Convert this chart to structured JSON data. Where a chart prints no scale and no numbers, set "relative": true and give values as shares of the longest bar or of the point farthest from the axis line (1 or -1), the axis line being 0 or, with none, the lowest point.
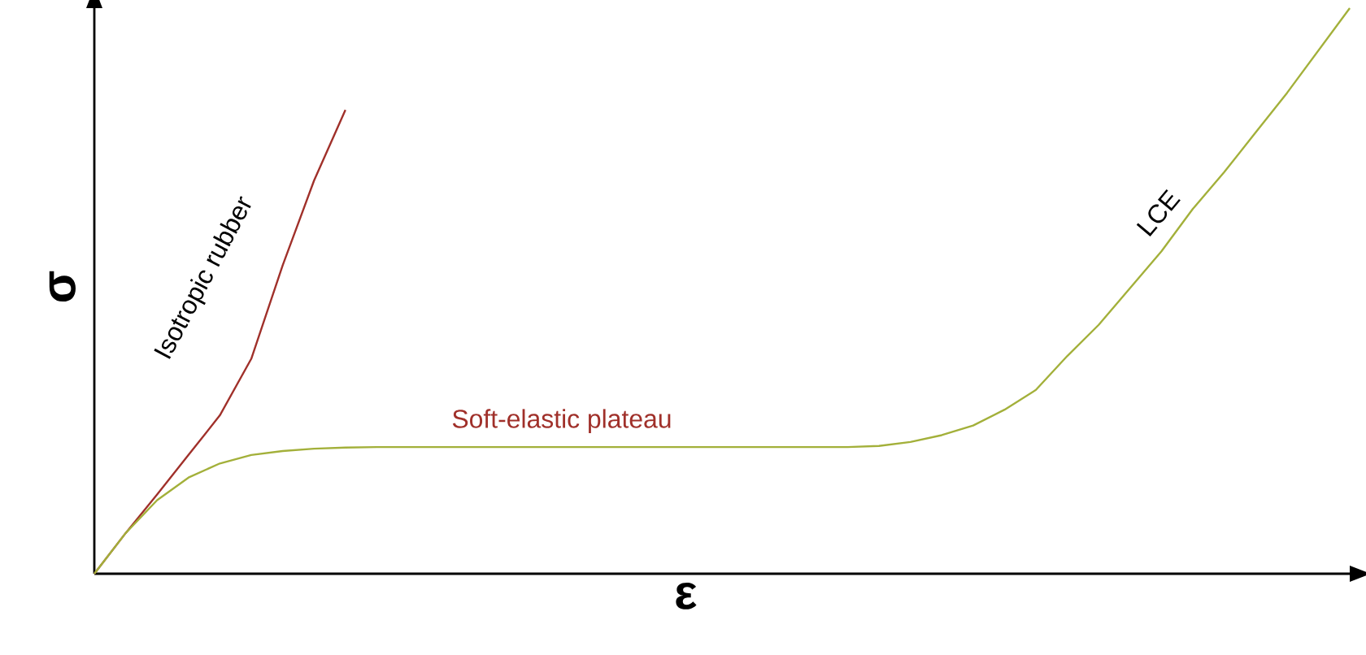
{
  "chart_data": {
    "type": "line",
    "relative": true,
    "xlabel": "ε",
    "ylabel": "σ",
    "annotations": [
      "Soft-elastic plateau"
    ],
    "categories": [
      null,
      null,
      null,
      null,
      null,
      null,
      null,
      null,
      null,
      null,
      null,
      null,
      null,
      null,
      null,
      null,
      null,
      null,
      null,
      null,
      null,
      null,
      null,
      null,
      null,
      null,
      null,
      null,
      null,
      null,
      null,
      null,
      null,
      null,
      null,
      null,
      null,
      null,
      null,
      null,
      null
    ],
    "series": [
      {
        "name": "Isotropic rubber",
        "color": "#a0302a",
        "values": [
          0,
          0.072,
          0.14,
          0.21,
          0.28,
          0.38,
          0.545,
          0.695,
          0.82,
          null,
          null,
          null,
          null,
          null,
          null,
          null,
          null,
          null,
          null,
          null,
          null,
          null,
          null,
          null,
          null,
          null,
          null,
          null,
          null,
          null,
          null,
          null,
          null,
          null,
          null,
          null,
          null,
          null,
          null,
          null,
          null
        ]
      },
      {
        "name": "LCE",
        "color": "#a3b03a",
        "values": [
          0,
          0.072,
          0.13,
          0.17,
          0.195,
          0.21,
          0.217,
          0.221,
          0.223,
          0.224,
          0.224,
          0.224,
          0.224,
          0.224,
          0.224,
          0.224,
          0.224,
          0.224,
          0.224,
          0.224,
          0.224,
          0.224,
          0.224,
          0.224,
          0.224,
          0.226,
          0.233,
          0.245,
          0.262,
          0.29,
          0.325,
          0.385,
          0.44,
          0.505,
          0.57,
          0.645,
          0.71,
          0.78,
          0.85,
          0.925,
          1.0
        ]
      }
    ]
  }
}
